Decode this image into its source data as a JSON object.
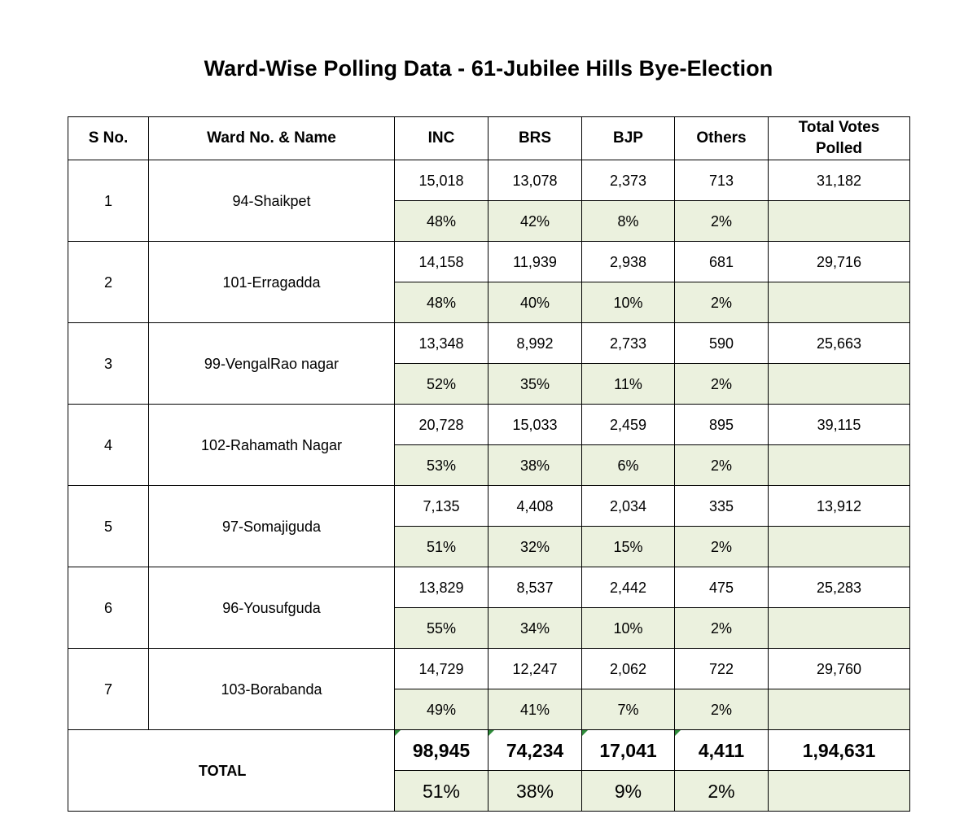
{
  "title": "Ward-Wise Polling Data - 61-Jubilee Hills Bye-Election",
  "table": {
    "headers": {
      "sno": "S No.",
      "ward": "Ward No. & Name",
      "inc": "INC",
      "brs": "BRS",
      "bjp": "BJP",
      "others": "Others",
      "total_line1": "Total Votes",
      "total_line2": "Polled"
    },
    "rows": [
      {
        "sno": "1",
        "ward": "94-Shaikpet",
        "inc": "15,018",
        "brs": "13,078",
        "bjp": "2,373",
        "others": "713",
        "total": "31,182",
        "inc_pct": "48%",
        "brs_pct": "42%",
        "bjp_pct": "8%",
        "others_pct": "2%"
      },
      {
        "sno": "2",
        "ward": "101-Erragadda",
        "inc": "14,158",
        "brs": "11,939",
        "bjp": "2,938",
        "others": "681",
        "total": "29,716",
        "inc_pct": "48%",
        "brs_pct": "40%",
        "bjp_pct": "10%",
        "others_pct": "2%"
      },
      {
        "sno": "3",
        "ward": "99-VengalRao nagar",
        "inc": "13,348",
        "brs": "8,992",
        "bjp": "2,733",
        "others": "590",
        "total": "25,663",
        "inc_pct": "52%",
        "brs_pct": "35%",
        "bjp_pct": "11%",
        "others_pct": "2%"
      },
      {
        "sno": "4",
        "ward": "102-Rahamath Nagar",
        "inc": "20,728",
        "brs": "15,033",
        "bjp": "2,459",
        "others": "895",
        "total": "39,115",
        "inc_pct": "53%",
        "brs_pct": "38%",
        "bjp_pct": "6%",
        "others_pct": "2%"
      },
      {
        "sno": "5",
        "ward": "97-Somajiguda",
        "inc": "7,135",
        "brs": "4,408",
        "bjp": "2,034",
        "others": "335",
        "total": "13,912",
        "inc_pct": "51%",
        "brs_pct": "32%",
        "bjp_pct": "15%",
        "others_pct": "2%"
      },
      {
        "sno": "6",
        "ward": "96-Yousufguda",
        "inc": "13,829",
        "brs": "8,537",
        "bjp": "2,442",
        "others": "475",
        "total": "25,283",
        "inc_pct": "55%",
        "brs_pct": "34%",
        "bjp_pct": "10%",
        "others_pct": "2%"
      },
      {
        "sno": "7",
        "ward": "103-Borabanda",
        "inc": "14,729",
        "brs": "12,247",
        "bjp": "2,062",
        "others": "722",
        "total": "29,760",
        "inc_pct": "49%",
        "brs_pct": "41%",
        "bjp_pct": "7%",
        "others_pct": "2%"
      }
    ],
    "total": {
      "label": "TOTAL",
      "inc": "98,945",
      "brs": "74,234",
      "bjp": "17,041",
      "others": "4,411",
      "total": "1,94,631",
      "inc_pct": "51%",
      "brs_pct": "38%",
      "bjp_pct": "9%",
      "others_pct": "2%"
    }
  },
  "colors": {
    "pct_fill": "#ebf1de",
    "border": "#000000",
    "error_flag": "#2e8b3a"
  }
}
